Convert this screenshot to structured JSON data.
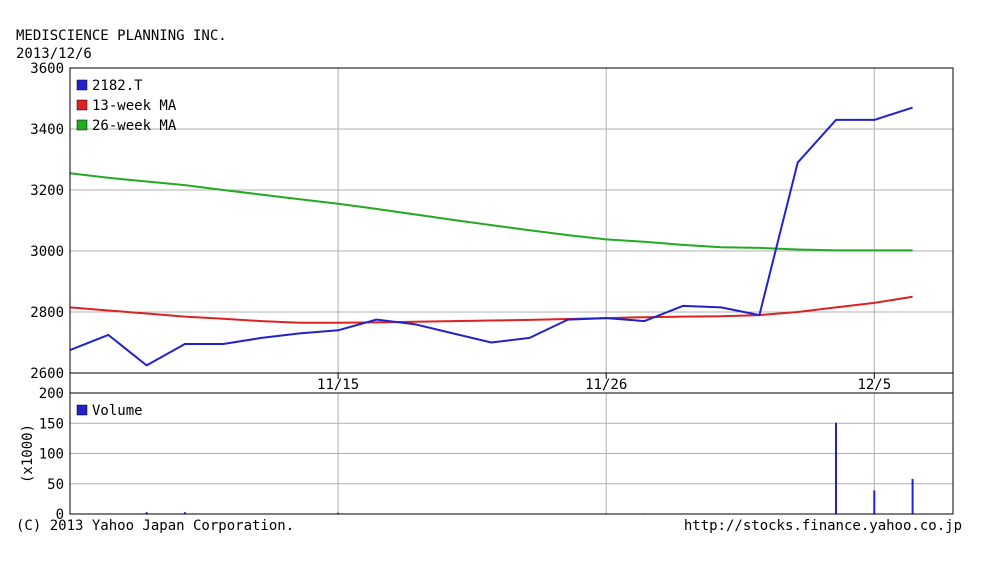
{
  "header": {
    "company": "MEDISCIENCE PLANNING INC.",
    "date": "2013/12/6"
  },
  "footer": {
    "copyright": "(C) 2013 Yahoo Japan Corporation.",
    "url": "http://stocks.finance.yahoo.co.jp"
  },
  "chart_data": [
    {
      "type": "line",
      "title": "",
      "ylim": [
        2600,
        3600
      ],
      "yticks": [
        2600,
        2800,
        3000,
        3200,
        3400,
        3600
      ],
      "grid": true,
      "legend_position": "top-left",
      "x_tick_labels": [
        {
          "label": "11/15",
          "index": 7
        },
        {
          "label": "11/26",
          "index": 14
        },
        {
          "label": "12/5",
          "index": 21
        }
      ],
      "x_count": 23,
      "series": [
        {
          "name": "2182.T",
          "color": "#2222cc",
          "values": [
            2675,
            2725,
            2625,
            2695,
            2695,
            2715,
            2730,
            2740,
            2775,
            2760,
            2730,
            2700,
            2715,
            2775,
            2780,
            2770,
            2820,
            2815,
            2790,
            3290,
            3430,
            3430,
            3470
          ]
        },
        {
          "name": "13-week MA",
          "color": "#dd2222",
          "values": [
            2815,
            2805,
            2795,
            2785,
            2778,
            2770,
            2765,
            2765,
            2766,
            2768,
            2770,
            2772,
            2774,
            2777,
            2780,
            2783,
            2785,
            2786,
            2790,
            2800,
            2815,
            2830,
            2850
          ]
        },
        {
          "name": "26-week MA",
          "color": "#22aa22",
          "values": [
            3255,
            3240,
            3228,
            3216,
            3200,
            3185,
            3170,
            3155,
            3138,
            3120,
            3102,
            3085,
            3068,
            3052,
            3038,
            3030,
            3020,
            3012,
            3010,
            3005,
            3002,
            3002,
            3002
          ]
        }
      ]
    },
    {
      "type": "bar",
      "title": "",
      "ylabel": "(x1000)",
      "ylim": [
        0,
        200
      ],
      "yticks": [
        0,
        50,
        100,
        150,
        200
      ],
      "grid": true,
      "legend_position": "top-left",
      "x_count": 23,
      "series": [
        {
          "name": "Volume",
          "color": "#2222cc",
          "values": [
            0,
            0,
            3,
            3,
            0,
            0,
            0,
            2,
            0,
            0,
            0,
            0,
            0,
            0,
            1,
            1,
            0,
            0,
            0,
            0,
            151,
            39,
            58
          ]
        }
      ]
    }
  ]
}
